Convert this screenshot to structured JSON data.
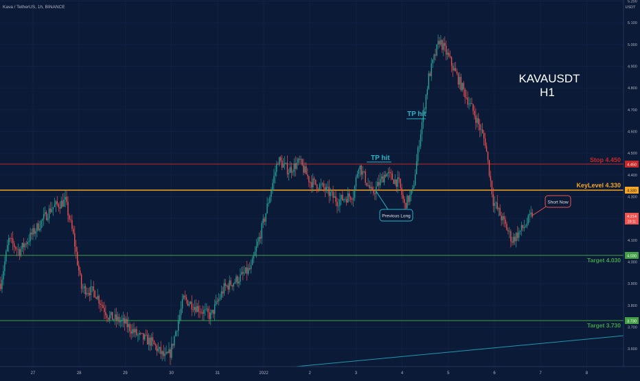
{
  "header": {
    "symbol_info": "Kava / TetherUS, 1h, BINANCE"
  },
  "colors": {
    "background": "#0b1a37",
    "up": "#26a69a",
    "down": "#ef5350",
    "stop": "#c62828",
    "keylevel": "#f5a623",
    "target": "#43a047",
    "annotation_tp": "#29b6c8",
    "axis_text": "#b2b5be"
  },
  "price_axis": {
    "currency": "USDT",
    "ticks": [
      "5.200",
      "5.100",
      "5.000",
      "4.900",
      "4.800",
      "4.700",
      "4.600",
      "4.500",
      "4.400",
      "4.300",
      "4.200",
      "4.100",
      "4.000",
      "3.900",
      "3.800",
      "3.700",
      "3.600"
    ]
  },
  "time_axis": {
    "labels": [
      "27",
      "28",
      "29",
      "30",
      "31",
      "2022",
      "2",
      "3",
      "4",
      "5",
      "6",
      "7",
      "8"
    ]
  },
  "levels": {
    "stop": {
      "label": "Stop 4.450",
      "badge": "4.450",
      "price": 4.45
    },
    "keylevel": {
      "label": "KeyLevel 4.330",
      "badge": "4.330",
      "price": 4.33
    },
    "target1": {
      "label": "Target 4.030",
      "badge": "4.030",
      "price": 4.03
    },
    "target2": {
      "label": "Target 3.730",
      "badge": "3.730",
      "price": 3.73
    }
  },
  "last_price": {
    "price_text": "4.214",
    "countdown": "29:11",
    "price": 4.214
  },
  "annotations": {
    "title_line1": "KAVAUSDT",
    "title_line2": "H1",
    "tp_hit_1": "TP hit",
    "tp_hit_2": "TP hit",
    "previous_long": "Previous Long",
    "short_now": "Short Now"
  },
  "chart_data": {
    "type": "candlestick",
    "series": [
      {
        "name": "price",
        "keyframes": [
          [
            0,
            3.9
          ],
          [
            6,
            4.1
          ],
          [
            14,
            4.05
          ],
          [
            26,
            4.15
          ],
          [
            38,
            4.25
          ],
          [
            48,
            4.28
          ],
          [
            54,
            4.12
          ],
          [
            60,
            3.88
          ],
          [
            70,
            3.86
          ],
          [
            80,
            3.75
          ],
          [
            92,
            3.72
          ],
          [
            102,
            3.66
          ],
          [
            112,
            3.63
          ],
          [
            122,
            3.56
          ],
          [
            126,
            3.58
          ],
          [
            136,
            3.83
          ],
          [
            146,
            3.79
          ],
          [
            156,
            3.75
          ],
          [
            166,
            3.88
          ],
          [
            176,
            3.92
          ],
          [
            186,
            3.97
          ],
          [
            196,
            4.2
          ],
          [
            206,
            4.47
          ],
          [
            214,
            4.42
          ],
          [
            222,
            4.46
          ],
          [
            230,
            4.37
          ],
          [
            240,
            4.34
          ],
          [
            250,
            4.28
          ],
          [
            262,
            4.31
          ],
          [
            266,
            4.45
          ],
          [
            276,
            4.31
          ],
          [
            286,
            4.41
          ],
          [
            296,
            4.36
          ],
          [
            300,
            4.26
          ],
          [
            306,
            4.32
          ],
          [
            312,
            4.6
          ],
          [
            318,
            4.85
          ],
          [
            326,
            5.02
          ],
          [
            332,
            4.95
          ],
          [
            340,
            4.84
          ],
          [
            352,
            4.68
          ],
          [
            360,
            4.55
          ],
          [
            366,
            4.28
          ],
          [
            374,
            4.18
          ],
          [
            380,
            4.1
          ],
          [
            390,
            4.17
          ],
          [
            395,
            4.22
          ]
        ]
      }
    ],
    "ylim": [
      3.55,
      5.22
    ]
  }
}
